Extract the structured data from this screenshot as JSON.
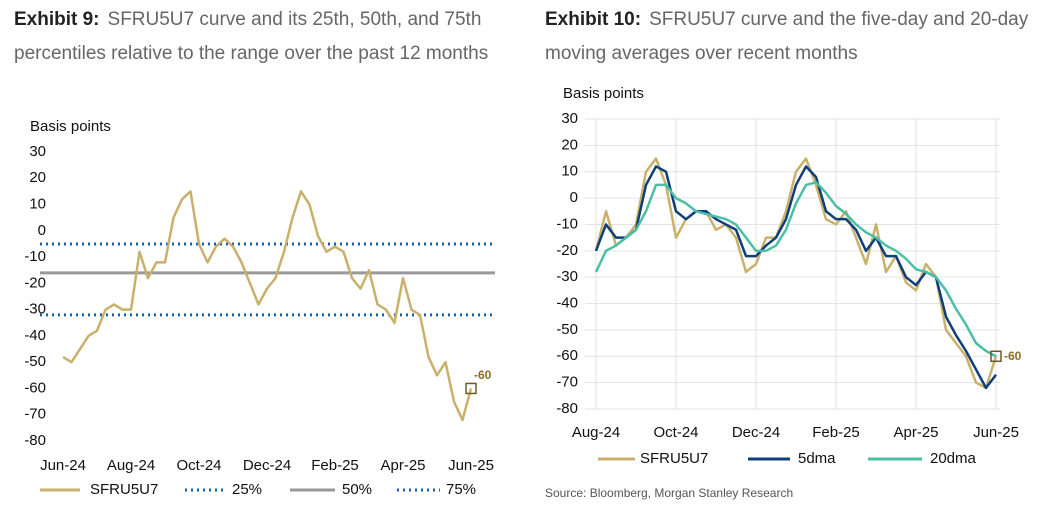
{
  "chart_data": [
    {
      "type": "line",
      "exhibit": "Exhibit 9:",
      "title": "SFRU5U7 curve and its 25th, 50th, and 75th percentiles relative to the range over the past 12 months",
      "y_label": "Basis points",
      "categories": [
        "Jun-24",
        null,
        null,
        null,
        null,
        null,
        null,
        null,
        "Aug-24",
        null,
        null,
        null,
        null,
        null,
        null,
        null,
        "Oct-24",
        null,
        null,
        null,
        null,
        null,
        null,
        null,
        "Dec-24",
        null,
        null,
        null,
        null,
        null,
        null,
        null,
        "Feb-25",
        null,
        null,
        null,
        null,
        null,
        null,
        null,
        "Apr-25",
        null,
        null,
        null,
        null,
        null,
        null,
        null,
        "Jun-25"
      ],
      "series": [
        {
          "name": "SFRU5U7",
          "color": "#c9b06b",
          "values": [
            -48,
            -50,
            -45,
            -40,
            -38,
            -30,
            -28,
            -30,
            -30,
            -8,
            -18,
            -12,
            -12,
            5,
            12,
            15,
            -5,
            -12,
            -6,
            -3,
            -6,
            -12,
            -20,
            -28,
            -22,
            -18,
            -8,
            5,
            15,
            10,
            -2,
            -8,
            -6,
            -8,
            -18,
            -22,
            -15,
            -28,
            -30,
            -35,
            -18,
            -30,
            -32,
            -48,
            -55,
            -50,
            -65,
            -72,
            -60
          ]
        }
      ],
      "reference_lines": [
        {
          "name": "25%",
          "value": -32,
          "color": "#1a5fa8",
          "dash": "dotted"
        },
        {
          "name": "50%",
          "value": -16,
          "color": "#999999",
          "dash": "solid"
        },
        {
          "name": "75%",
          "value": -5,
          "color": "#1a5fa8",
          "dash": "dotted"
        }
      ],
      "annotation": {
        "value": -60
      },
      "ylim": [
        -80,
        30
      ],
      "yticks": [
        30,
        20,
        10,
        0,
        -10,
        -20,
        -30,
        -40,
        -50,
        -60,
        -70,
        -80
      ],
      "grid": false
    },
    {
      "type": "line",
      "exhibit": "Exhibit 10:",
      "title": "SFRU5U7 curve and the five-day and 20-day moving averages over recent months",
      "y_label": "Basis points",
      "categories": [
        "Aug-24",
        null,
        null,
        null,
        null,
        null,
        null,
        null,
        "Oct-24",
        null,
        null,
        null,
        null,
        null,
        null,
        null,
        "Dec-24",
        null,
        null,
        null,
        null,
        null,
        null,
        null,
        "Feb-25",
        null,
        null,
        null,
        null,
        null,
        null,
        null,
        "Apr-25",
        null,
        null,
        null,
        null,
        null,
        null,
        null,
        "Jun-25"
      ],
      "series": [
        {
          "name": "SFRU5U7",
          "color": "#c9b06b",
          "values": [
            -20,
            -5,
            -18,
            -15,
            -10,
            10,
            15,
            5,
            -15,
            -8,
            -5,
            -5,
            -12,
            -10,
            -15,
            -28,
            -25,
            -15,
            -15,
            -5,
            10,
            15,
            5,
            -8,
            -10,
            -5,
            -15,
            -25,
            -10,
            -28,
            -22,
            -32,
            -35,
            -25,
            -30,
            -50,
            -55,
            -60,
            -70,
            -72,
            -60
          ]
        },
        {
          "name": "5dma",
          "color": "#0d3f7a",
          "values": [
            -20,
            -10,
            -15,
            -15,
            -12,
            5,
            12,
            10,
            -5,
            -8,
            -5,
            -5,
            -8,
            -10,
            -12,
            -22,
            -22,
            -18,
            -15,
            -8,
            5,
            12,
            8,
            -5,
            -8,
            -8,
            -12,
            -20,
            -15,
            -22,
            -22,
            -30,
            -33,
            -28,
            -30,
            -45,
            -52,
            -58,
            -65,
            -72,
            -67
          ]
        },
        {
          "name": "20dma",
          "color": "#4bbfa6",
          "values": [
            -28,
            -20,
            -18,
            -15,
            -12,
            -5,
            5,
            5,
            0,
            -2,
            -5,
            -6,
            -7,
            -8,
            -10,
            -15,
            -20,
            -20,
            -18,
            -12,
            -2,
            5,
            6,
            2,
            -3,
            -6,
            -10,
            -13,
            -15,
            -18,
            -20,
            -23,
            -27,
            -28,
            -30,
            -35,
            -42,
            -48,
            -55,
            -58,
            -60
          ]
        }
      ],
      "annotation": {
        "value": -60
      },
      "source": "Source: Bloomberg, Morgan Stanley Research",
      "ylim": [
        -80,
        30
      ],
      "yticks": [
        30,
        20,
        10,
        0,
        -10,
        -20,
        -30,
        -40,
        -50,
        -60,
        -70,
        -80
      ],
      "grid": true
    }
  ]
}
